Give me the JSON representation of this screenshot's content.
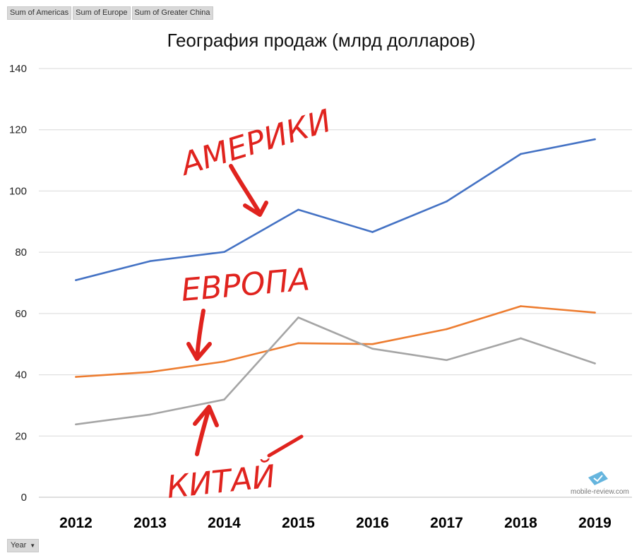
{
  "field_buttons": [
    "Sum of Americas",
    "Sum of Europe",
    "Sum of Greater China"
  ],
  "axis_field_button": {
    "label": "Year",
    "icon": "dropdown-arrow-icon"
  },
  "watermark": "mobile-review.com",
  "annotations": {
    "americas": "АМЕРИКИ",
    "europe": "ЕВРОПА",
    "china": "КИТАЙ"
  },
  "chart_data": {
    "type": "line",
    "title": "География продаж (млрд долларов)",
    "xlabel": "",
    "ylabel": "",
    "categories": [
      "2012",
      "2013",
      "2014",
      "2015",
      "2016",
      "2017",
      "2018",
      "2019"
    ],
    "ylim": [
      0,
      140
    ],
    "yticks": [
      0,
      20,
      40,
      60,
      80,
      100,
      120,
      140
    ],
    "grid": true,
    "legend": "none",
    "series": [
      {
        "key": "americas",
        "color": "#4472c4",
        "values": [
          70.9,
          77.1,
          80.1,
          93.9,
          86.6,
          96.6,
          112.1,
          116.9
        ]
      },
      {
        "key": "europe",
        "color": "#ed7d31",
        "values": [
          39.3,
          40.9,
          44.3,
          50.3,
          50.0,
          54.9,
          62.4,
          60.3
        ]
      },
      {
        "key": "china",
        "color": "#a5a5a5",
        "values": [
          23.8,
          27.0,
          31.9,
          58.7,
          48.5,
          44.8,
          51.9,
          43.7
        ]
      }
    ]
  }
}
